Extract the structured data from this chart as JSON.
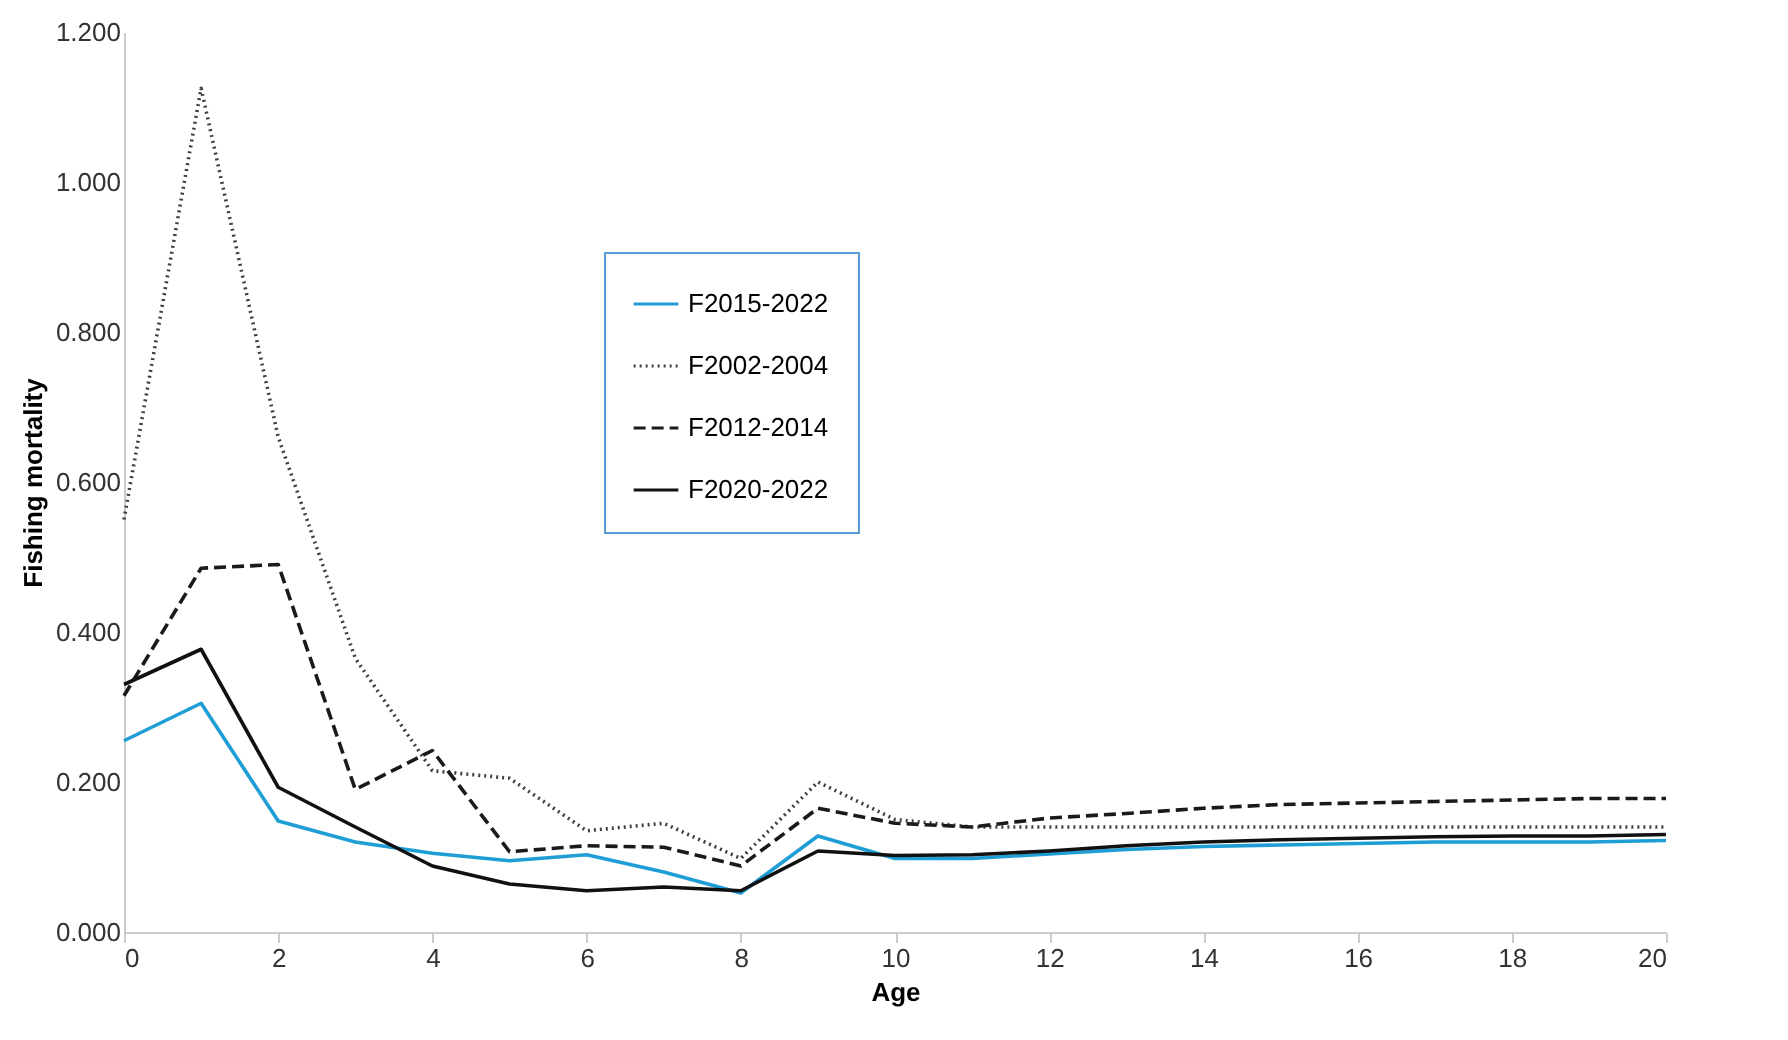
{
  "chart_data": {
    "type": "line",
    "xlabel": "Age",
    "ylabel": "Fishing mortality",
    "x": [
      0,
      1,
      2,
      3,
      4,
      5,
      6,
      7,
      8,
      9,
      10,
      11,
      12,
      13,
      14,
      15,
      16,
      17,
      18,
      19,
      20
    ],
    "xlim": [
      0,
      20
    ],
    "xticks": [
      0,
      2,
      4,
      6,
      8,
      10,
      12,
      14,
      16,
      18,
      20
    ],
    "ylim": [
      0,
      1.2
    ],
    "yticks": [
      {
        "value": 0,
        "label": "0.000"
      },
      {
        "value": 0.2,
        "label": "0.200"
      },
      {
        "value": 0.4,
        "label": "0.400"
      },
      {
        "value": 0.6,
        "label": "0.600"
      },
      {
        "value": 0.8,
        "label": "0.800"
      },
      {
        "value": 1.0,
        "label": "1.000"
      },
      {
        "value": 1.2,
        "label": "1.200"
      }
    ],
    "grid": false,
    "legend": "top",
    "marker": "none",
    "series": [
      {
        "name": "F2015-2022",
        "color": "#1f9ed6",
        "line_style": "solid",
        "values": [
          0.255,
          0.305,
          0.148,
          0.12,
          0.105,
          0.095,
          0.103,
          0.08,
          0.052,
          0.128,
          0.098,
          0.098,
          0.104,
          0.11,
          0.114,
          0.116,
          0.118,
          0.12,
          0.12,
          0.12,
          0.122
        ]
      },
      {
        "name": "F2002-2004",
        "color": "#404040",
        "line_style": "dotted",
        "values": [
          0.55,
          1.125,
          0.66,
          0.365,
          0.215,
          0.205,
          0.135,
          0.145,
          0.098,
          0.2,
          0.15,
          0.14,
          0.14,
          0.14,
          0.14,
          0.14,
          0.14,
          0.14,
          0.14,
          0.14,
          0.14
        ]
      },
      {
        "name": "F2012-2014",
        "color": "#1a1a1a",
        "line_style": "dashed",
        "values": [
          0.315,
          0.485,
          0.49,
          0.19,
          0.242,
          0.107,
          0.115,
          0.113,
          0.088,
          0.165,
          0.145,
          0.14,
          0.152,
          0.158,
          0.165,
          0.17,
          0.172,
          0.174,
          0.176,
          0.178,
          0.178
        ]
      },
      {
        "name": "F2020-2022",
        "color": "#111111",
        "line_style": "solid",
        "values": [
          0.33,
          0.377,
          0.193,
          0.14,
          0.088,
          0.064,
          0.055,
          0.06,
          0.055,
          0.108,
          0.102,
          0.103,
          0.108,
          0.115,
          0.12,
          0.123,
          0.125,
          0.127,
          0.128,
          0.128,
          0.13
        ]
      }
    ]
  }
}
